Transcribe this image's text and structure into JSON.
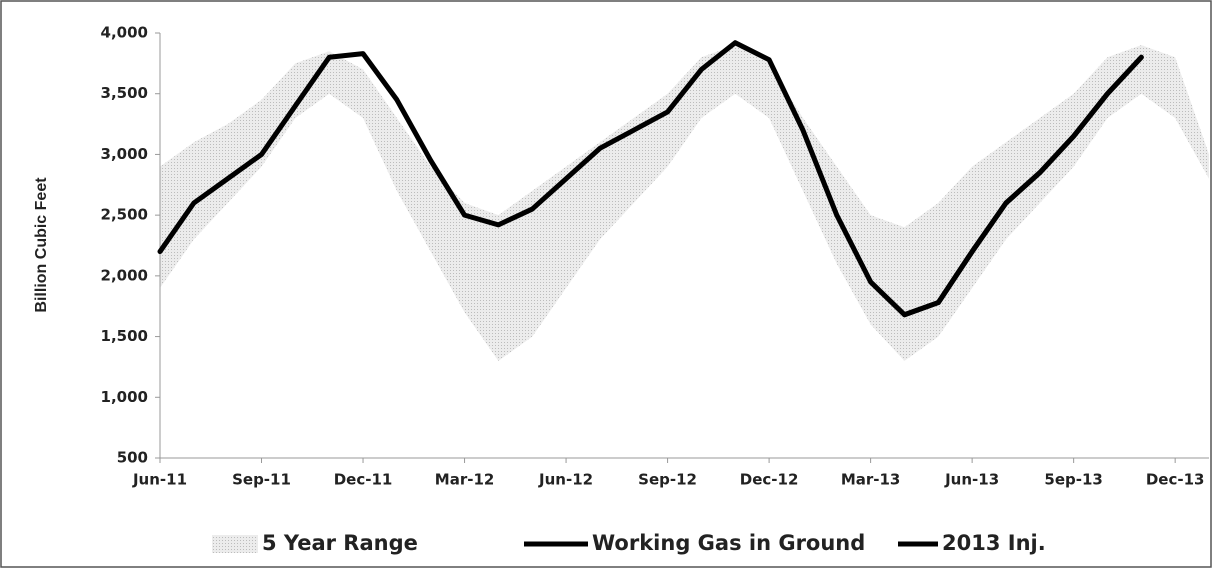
{
  "chart_data": {
    "type": "line",
    "y_label": "Billion Cubic Feet",
    "categories": [
      "Jun-11",
      null,
      null,
      "Sep-11",
      null,
      null,
      "Dec-11",
      null,
      null,
      "Mar-12",
      null,
      null,
      "Jun-12",
      null,
      null,
      "Sep-12",
      null,
      null,
      "Dec-12",
      null,
      null,
      "Mar-13",
      null,
      null,
      "Jun-13",
      null,
      null,
      "5ep-13",
      null,
      null,
      "Dec-13",
      null
    ],
    "range": {
      "name": "5 Year Range",
      "color": "#dedede",
      "high": [
        2900,
        3100,
        3250,
        3450,
        3750,
        3850,
        3700,
        3300,
        2900,
        2600,
        2500,
        2700,
        2900,
        3100,
        3300,
        3500,
        3800,
        3900,
        3750,
        3300,
        2900,
        2500,
        2400,
        2600,
        2900,
        3100,
        3300,
        3500,
        3800,
        3900,
        3800,
        3000
      ],
      "low": [
        1900,
        2300,
        2600,
        2900,
        3300,
        3500,
        3300,
        2700,
        2200,
        1700,
        1300,
        1500,
        1900,
        2300,
        2600,
        2900,
        3300,
        3500,
        3300,
        2700,
        2100,
        1600,
        1300,
        1500,
        1900,
        2300,
        2600,
        2900,
        3300,
        3500,
        3300,
        2800
      ]
    },
    "series": [
      {
        "name": "Working Gas in Ground",
        "color": "#000000",
        "values": [
          2200,
          2600,
          2800,
          3000,
          3400,
          3800,
          3830,
          3450,
          2950,
          2500,
          2420,
          2550,
          2800,
          3050,
          3200,
          3350,
          3700,
          3920,
          3780,
          3200,
          2500,
          1950,
          1680,
          1780,
          2200,
          2600,
          2850,
          3150,
          3500,
          3800,
          null,
          null
        ]
      },
      {
        "name": "2013 Inj.",
        "color": "#000000",
        "values": [
          null,
          null,
          null,
          null,
          null,
          null,
          null,
          null,
          null,
          null,
          null,
          null,
          null,
          null,
          null,
          null,
          null,
          null,
          null,
          null,
          null,
          null,
          1680,
          1780,
          2200,
          2600,
          2850,
          3150,
          3500,
          3800,
          null,
          null
        ]
      }
    ],
    "ylim": [
      500,
      4000
    ],
    "yticks": [
      500,
      {
        "value": 1000,
        "label": "1,000"
      },
      {
        "value": 1500,
        "label": "1,500"
      },
      {
        "value": 2000,
        "label": "2,000"
      },
      {
        "value": 2500,
        "label": "2,500"
      },
      {
        "value": 3000,
        "label": "3,000"
      },
      {
        "value": 3500,
        "label": "3,500"
      },
      {
        "value": 4000,
        "label": "4,000"
      }
    ],
    "grid": false
  }
}
